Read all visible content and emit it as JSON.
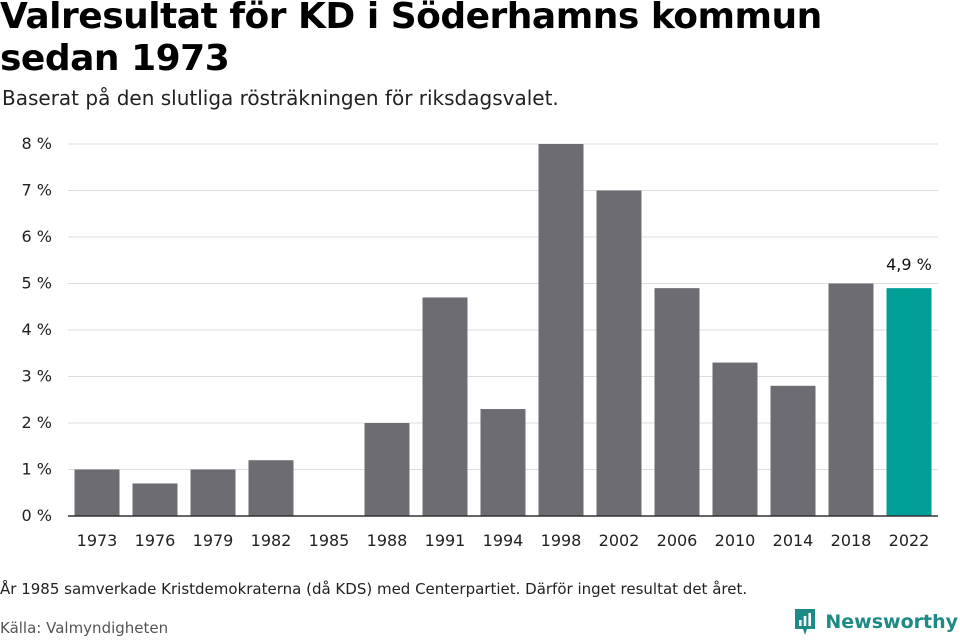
{
  "header": {
    "title": "Valresultat för KD i Söderhamns kommun sedan 1973",
    "subtitle": "Baserat på den slutliga rösträkningen för riksdagsvalet."
  },
  "footer": {
    "note": "År 1985 samverkade Kristdemokraterna (då KDS) med Centerpartiet. Därför inget resultat det året.",
    "source": "Källa: Valmyndigheten",
    "brand": "Newsworthy",
    "brand_icon": "newsworthy-logo-icon"
  },
  "colors": {
    "bar": "#6d6c72",
    "highlight": "#009e96",
    "grid": "#dddddd",
    "axis": "#333333",
    "brand": "#1d8a85"
  },
  "chart_data": {
    "type": "bar",
    "title": "Valresultat för KD i Söderhamns kommun sedan 1973",
    "subtitle": "Baserat på den slutliga rösträkningen för riksdagsvalet.",
    "xlabel": "",
    "ylabel": "",
    "categories": [
      "1973",
      "1976",
      "1979",
      "1982",
      "1985",
      "1988",
      "1991",
      "1994",
      "1998",
      "2002",
      "2006",
      "2010",
      "2014",
      "2018",
      "2022"
    ],
    "values": [
      1.0,
      0.7,
      1.0,
      1.2,
      null,
      2.0,
      4.7,
      2.3,
      8.0,
      7.0,
      4.9,
      3.3,
      2.8,
      5.0,
      4.9
    ],
    "ylim": [
      0,
      8
    ],
    "yticks": [
      0,
      1,
      2,
      3,
      4,
      5,
      6,
      7,
      8
    ],
    "ytick_labels": [
      "0 %",
      "1 %",
      "2 %",
      "3 %",
      "4 %",
      "5 %",
      "6 %",
      "7 %",
      "8 %"
    ],
    "highlight_category": "2022",
    "data_labels": [
      {
        "category": "2022",
        "text": "4,9 %"
      }
    ],
    "grid": true,
    "legend": "none"
  }
}
